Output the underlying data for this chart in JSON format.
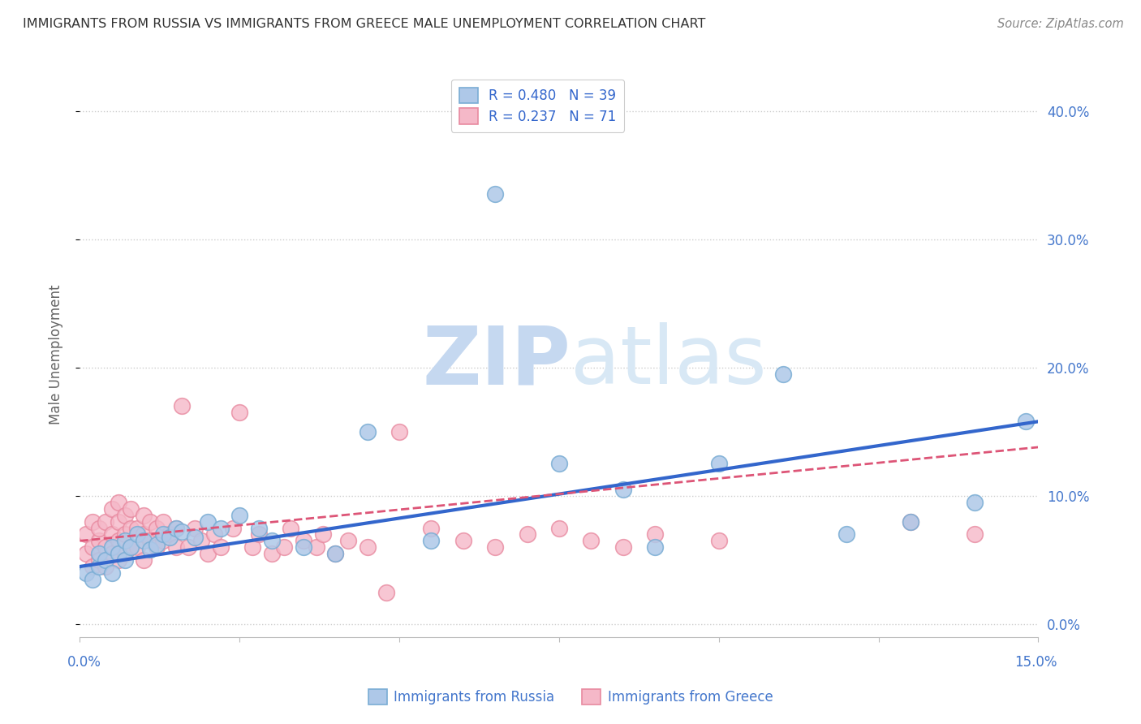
{
  "title": "IMMIGRANTS FROM RUSSIA VS IMMIGRANTS FROM GREECE MALE UNEMPLOYMENT CORRELATION CHART",
  "source": "Source: ZipAtlas.com",
  "ylabel": "Male Unemployment",
  "ylabel_right_vals": [
    0.0,
    0.1,
    0.2,
    0.3,
    0.4
  ],
  "xlim": [
    0.0,
    0.15
  ],
  "ylim": [
    -0.01,
    0.43
  ],
  "R_russia": 0.48,
  "N_russia": 39,
  "R_greece": 0.237,
  "N_greece": 71,
  "color_russia_fill": "#aec8e8",
  "color_russia_edge": "#7aadd4",
  "color_greece_fill": "#f5b8c8",
  "color_greece_edge": "#e88aa0",
  "color_line_russia": "#3366cc",
  "color_line_greece": "#dd5577",
  "color_title": "#333333",
  "color_source": "#888888",
  "color_axis_labels": "#4477cc",
  "watermark_color": "#dde8f5",
  "background_color": "#ffffff",
  "grid_color": "#cccccc",
  "russia_x": [
    0.001,
    0.002,
    0.003,
    0.003,
    0.004,
    0.005,
    0.005,
    0.006,
    0.007,
    0.007,
    0.008,
    0.009,
    0.01,
    0.011,
    0.012,
    0.013,
    0.014,
    0.015,
    0.016,
    0.018,
    0.02,
    0.022,
    0.025,
    0.028,
    0.03,
    0.035,
    0.04,
    0.045,
    0.055,
    0.065,
    0.075,
    0.085,
    0.09,
    0.1,
    0.11,
    0.12,
    0.13,
    0.14,
    0.148
  ],
  "russia_y": [
    0.04,
    0.035,
    0.045,
    0.055,
    0.05,
    0.04,
    0.06,
    0.055,
    0.05,
    0.065,
    0.06,
    0.07,
    0.065,
    0.058,
    0.062,
    0.07,
    0.068,
    0.075,
    0.072,
    0.068,
    0.08,
    0.075,
    0.085,
    0.075,
    0.065,
    0.06,
    0.055,
    0.15,
    0.065,
    0.335,
    0.125,
    0.105,
    0.06,
    0.125,
    0.195,
    0.07,
    0.08,
    0.095,
    0.158
  ],
  "greece_x": [
    0.001,
    0.001,
    0.002,
    0.002,
    0.002,
    0.003,
    0.003,
    0.003,
    0.004,
    0.004,
    0.004,
    0.005,
    0.005,
    0.005,
    0.006,
    0.006,
    0.006,
    0.006,
    0.007,
    0.007,
    0.007,
    0.008,
    0.008,
    0.008,
    0.009,
    0.009,
    0.01,
    0.01,
    0.01,
    0.011,
    0.011,
    0.012,
    0.012,
    0.013,
    0.013,
    0.014,
    0.015,
    0.015,
    0.016,
    0.017,
    0.018,
    0.019,
    0.02,
    0.021,
    0.022,
    0.024,
    0.025,
    0.027,
    0.028,
    0.03,
    0.032,
    0.033,
    0.035,
    0.037,
    0.038,
    0.04,
    0.042,
    0.045,
    0.048,
    0.05,
    0.055,
    0.06,
    0.065,
    0.07,
    0.075,
    0.08,
    0.085,
    0.09,
    0.1,
    0.13,
    0.14
  ],
  "greece_y": [
    0.055,
    0.07,
    0.045,
    0.06,
    0.08,
    0.05,
    0.065,
    0.075,
    0.045,
    0.06,
    0.08,
    0.055,
    0.07,
    0.09,
    0.05,
    0.065,
    0.08,
    0.095,
    0.055,
    0.07,
    0.085,
    0.06,
    0.075,
    0.09,
    0.06,
    0.075,
    0.05,
    0.07,
    0.085,
    0.065,
    0.08,
    0.06,
    0.075,
    0.065,
    0.08,
    0.07,
    0.06,
    0.075,
    0.17,
    0.06,
    0.075,
    0.065,
    0.055,
    0.07,
    0.06,
    0.075,
    0.165,
    0.06,
    0.07,
    0.055,
    0.06,
    0.075,
    0.065,
    0.06,
    0.07,
    0.055,
    0.065,
    0.06,
    0.025,
    0.15,
    0.075,
    0.065,
    0.06,
    0.07,
    0.075,
    0.065,
    0.06,
    0.07,
    0.065,
    0.08,
    0.07
  ]
}
